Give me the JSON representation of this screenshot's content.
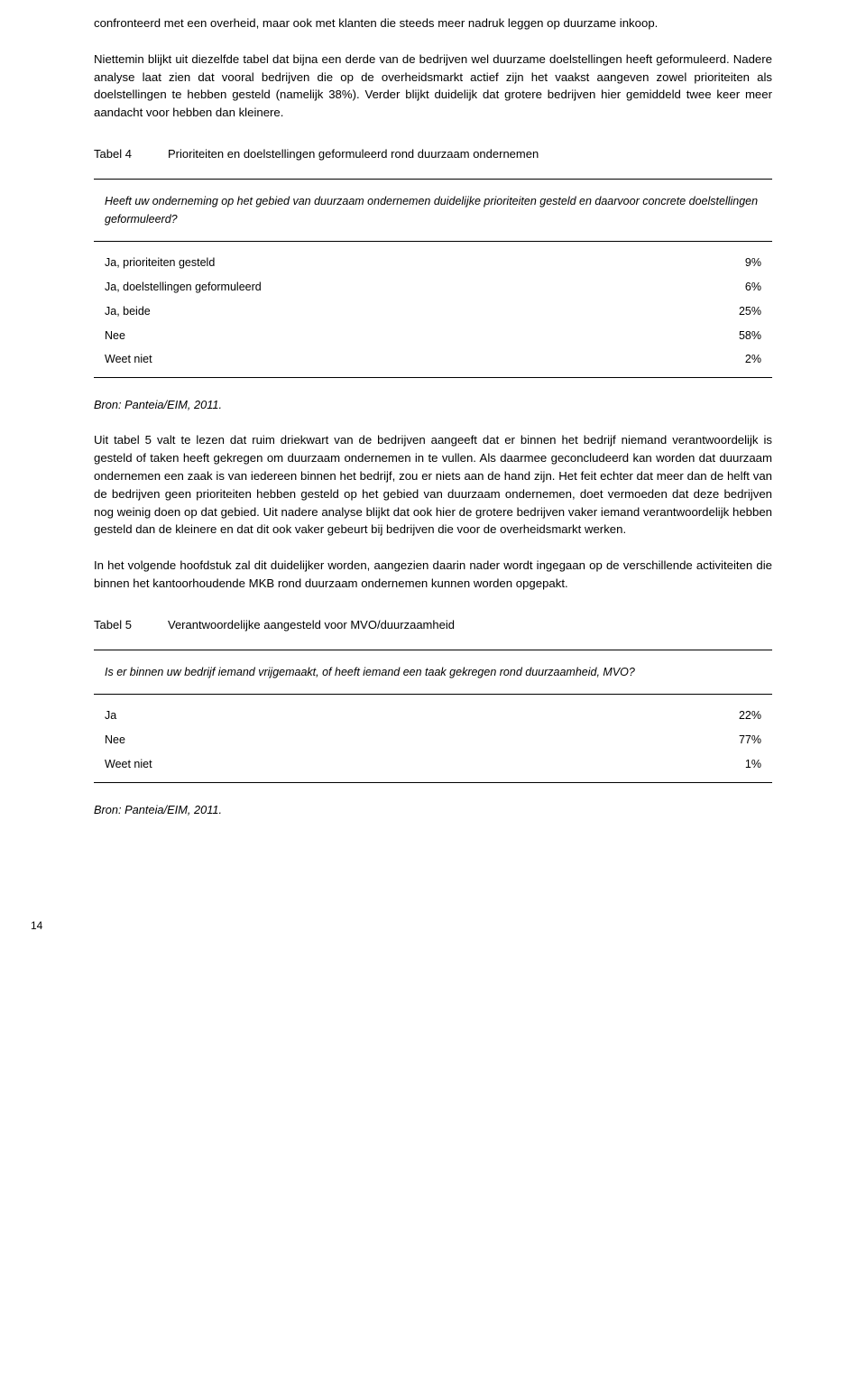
{
  "paragraphs": {
    "p1a": "confronteerd met een overheid, maar ook met klanten die steeds meer nadruk leggen op duurzame inkoop.",
    "p1b": "Niettemin blijkt uit diezelfde tabel dat bijna een derde van de bedrijven wel duurzame doelstellingen heeft geformuleerd. Nadere analyse laat zien dat vooral bedrijven die op de overheidsmarkt actief zijn het vaakst aangeven zowel prioriteiten als doelstellingen te hebben gesteld (namelijk 38%). Verder blijkt duidelijk dat grotere bedrijven hier gemiddeld twee keer meer aandacht voor hebben dan kleinere.",
    "p2": "Uit tabel 5 valt te lezen dat ruim driekwart van de bedrijven aangeeft dat er binnen het bedrijf niemand verantwoordelijk is gesteld of taken heeft gekregen om duurzaam ondernemen in te vullen. Als daarmee geconcludeerd kan worden dat duurzaam ondernemen een zaak is van iedereen binnen het bedrijf, zou er niets aan de hand zijn. Het feit echter dat meer dan de helft van de bedrijven geen prioriteiten hebben gesteld op het gebied van duurzaam ondernemen, doet vermoeden dat deze bedrijven nog weinig doen op dat gebied. Uit nadere analyse blijkt dat ook hier de grotere bedrijven vaker iemand verantwoordelijk hebben gesteld dan de kleinere en dat dit ook vaker gebeurt bij bedrijven die voor de overheidsmarkt werken.",
    "p3": "In het volgende hoofdstuk zal dit duidelijker worden, aangezien daarin nader wordt ingegaan op de verschillende activiteiten die binnen het kantoorhoudende MKB rond duurzaam ondernemen kunnen worden opgepakt."
  },
  "table4": {
    "number": "Tabel 4",
    "title": "Prioriteiten en doelstellingen geformuleerd rond duurzaam ondernemen",
    "question": "Heeft uw onderneming op het gebied van duurzaam ondernemen duidelijke prioriteiten gesteld en daarvoor concrete doelstellingen geformuleerd?",
    "rows": [
      {
        "label": "Ja, prioriteiten gesteld",
        "value": "9%"
      },
      {
        "label": "Ja, doelstellingen geformuleerd",
        "value": "6%"
      },
      {
        "label": "Ja, beide",
        "value": "25%"
      },
      {
        "label": "Nee",
        "value": "58%"
      },
      {
        "label": "Weet niet",
        "value": "2%"
      }
    ],
    "source": "Bron: Panteia/EIM, 2011."
  },
  "table5": {
    "number": "Tabel 5",
    "title": "Verantwoordelijke aangesteld voor MVO/duurzaamheid",
    "question": "Is er binnen uw bedrijf iemand vrijgemaakt, of heeft iemand een taak gekregen rond duurzaamheid, MVO?",
    "rows": [
      {
        "label": "Ja",
        "value": "22%"
      },
      {
        "label": "Nee",
        "value": "77%"
      },
      {
        "label": "Weet niet",
        "value": "1%"
      }
    ],
    "source": "Bron: Panteia/EIM, 2011."
  },
  "pageNumber": "14"
}
